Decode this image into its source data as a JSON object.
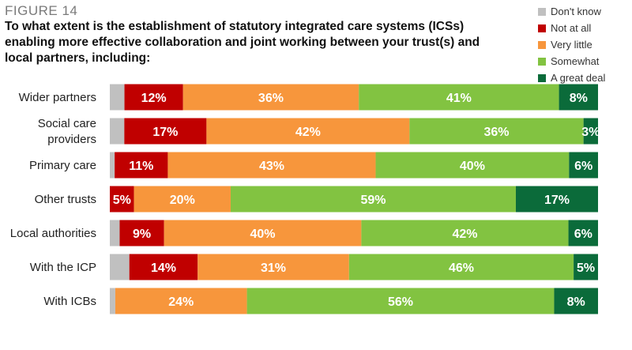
{
  "figure_label": "FIGURE 14",
  "chart_data": {
    "type": "bar",
    "orientation": "horizontal",
    "stacked": true,
    "title": "To what extent is the establishment of statutory integrated care systems (ICSs) enabling more effective collaboration and joint working between your trust(s) and local partners, including:",
    "categories": [
      [
        "Wider partners"
      ],
      [
        "Social care",
        "providers"
      ],
      [
        "Primary care"
      ],
      [
        "Other trusts"
      ],
      [
        "Local authorities"
      ],
      [
        "With the ICP"
      ],
      [
        "With ICBs"
      ]
    ],
    "series": [
      {
        "name": "Don't know",
        "color": "#c0c0c0",
        "values": [
          3,
          3,
          1,
          0,
          2,
          4,
          1
        ]
      },
      {
        "name": "Not at all",
        "color": "#c00000",
        "values": [
          12,
          17,
          11,
          5,
          9,
          14,
          0
        ]
      },
      {
        "name": "Very little",
        "color": "#f7963c",
        "values": [
          36,
          42,
          43,
          20,
          40,
          31,
          24
        ]
      },
      {
        "name": "Somewhat",
        "color": "#82c341",
        "values": [
          41,
          36,
          40,
          59,
          42,
          46,
          56
        ]
      },
      {
        "name": "A great deal",
        "color": "#0b6b3a",
        "values": [
          8,
          3,
          6,
          17,
          6,
          5,
          8
        ]
      }
    ],
    "data_labels": [
      [
        "",
        "12%",
        "36%",
        "41%",
        "8%"
      ],
      [
        "",
        "17%",
        "42%",
        "36%",
        "3%"
      ],
      [
        "",
        "11%",
        "43%",
        "40%",
        "6%"
      ],
      [
        "",
        "5%",
        "20%",
        "59%",
        "17%"
      ],
      [
        "",
        "9%",
        "40%",
        "42%",
        "6%"
      ],
      [
        "",
        "14%",
        "31%",
        "46%",
        "5%"
      ],
      [
        "",
        "",
        "24%",
        "56%",
        "8%"
      ]
    ],
    "legend_position": "top-right",
    "grid": false,
    "xlim": [
      0,
      100
    ]
  }
}
